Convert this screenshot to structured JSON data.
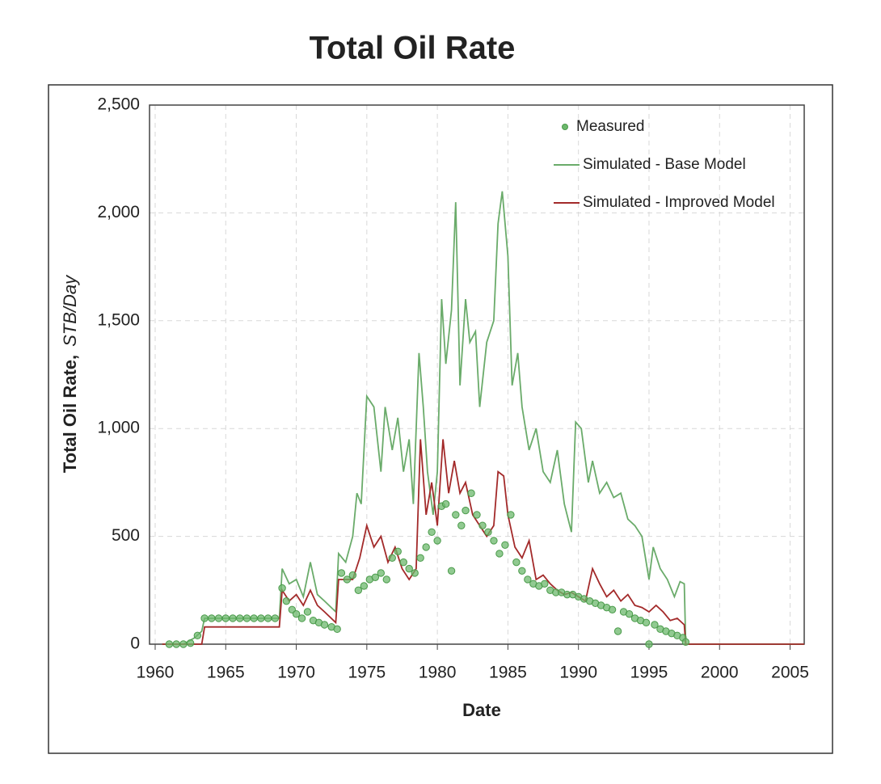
{
  "chart_data": {
    "type": "line",
    "title": "Total Oil Rate",
    "x_label": "Date",
    "y_label": "Total Oil Rate,",
    "y_unit": "STB/Day",
    "xlim": [
      1959.6,
      2006
    ],
    "ylim": [
      0,
      2500
    ],
    "xticks": [
      1960,
      1965,
      1970,
      1975,
      1980,
      1985,
      1990,
      1995,
      2000,
      2005
    ],
    "yticks": [
      0,
      500,
      {
        "value": 1000,
        "label": "1,000"
      },
      {
        "value": 1500,
        "label": "1,500"
      },
      {
        "value": 2000,
        "label": "2,000"
      },
      {
        "value": 2500,
        "label": "2,500"
      }
    ],
    "grid": true,
    "legend": "upper right",
    "series": [
      {
        "name": "Measured",
        "type": "scatter",
        "color": "#6cb86c",
        "x": [
          1961,
          1961.5,
          1962,
          1962.5,
          1963,
          1963.5,
          1964,
          1964.5,
          1965,
          1965.5,
          1966,
          1966.5,
          1967,
          1967.5,
          1968,
          1968.5,
          1969,
          1969.3,
          1969.7,
          1970,
          1970.4,
          1970.8,
          1971.2,
          1971.6,
          1972,
          1972.5,
          1972.9,
          1973.2,
          1973.6,
          1974,
          1974.4,
          1974.8,
          1975.2,
          1975.6,
          1976,
          1976.4,
          1976.8,
          1977.2,
          1977.6,
          1978,
          1978.4,
          1978.8,
          1979.2,
          1979.6,
          1980,
          1980.3,
          1980.6,
          1981,
          1981.3,
          1981.7,
          1982,
          1982.4,
          1982.8,
          1983.2,
          1983.6,
          1984,
          1984.4,
          1984.8,
          1985.2,
          1985.6,
          1986,
          1986.4,
          1986.8,
          1987.2,
          1987.6,
          1988,
          1988.4,
          1988.8,
          1989.2,
          1989.6,
          1990,
          1990.4,
          1990.8,
          1991.2,
          1991.6,
          1992,
          1992.4,
          1992.8,
          1993.2,
          1993.6,
          1994,
          1994.4,
          1994.8,
          1995,
          1995.4,
          1995.8,
          1996.2,
          1996.6,
          1997,
          1997.4,
          1997.6
        ],
        "values": [
          0,
          0,
          0,
          5,
          40,
          120,
          120,
          120,
          120,
          120,
          120,
          120,
          120,
          120,
          120,
          120,
          260,
          200,
          160,
          140,
          120,
          150,
          110,
          100,
          90,
          80,
          70,
          330,
          300,
          320,
          250,
          270,
          300,
          310,
          330,
          300,
          400,
          430,
          380,
          350,
          330,
          400,
          450,
          520,
          480,
          640,
          650,
          340,
          600,
          550,
          620,
          700,
          600,
          550,
          520,
          480,
          420,
          460,
          600,
          380,
          340,
          300,
          280,
          270,
          280,
          250,
          240,
          240,
          230,
          230,
          220,
          210,
          200,
          190,
          180,
          170,
          160,
          60,
          150,
          140,
          120,
          110,
          100,
          0,
          90,
          70,
          60,
          50,
          40,
          30,
          10
        ]
      },
      {
        "name": "Simulated - Base Model",
        "type": "line",
        "color": "#6aab6a",
        "x": [
          1960.5,
          1962,
          1962.8,
          1963.3,
          1963.5,
          1968.8,
          1969,
          1969.5,
          1970,
          1970.5,
          1971,
          1971.5,
          1972,
          1972.8,
          1973,
          1973.5,
          1974,
          1974.3,
          1974.6,
          1975,
          1975.5,
          1976,
          1976.3,
          1976.8,
          1977.2,
          1977.6,
          1978,
          1978.3,
          1978.7,
          1979,
          1979.3,
          1979.7,
          1980,
          1980.3,
          1980.6,
          1981,
          1981.3,
          1981.6,
          1982,
          1982.3,
          1982.7,
          1983,
          1983.5,
          1984,
          1984.3,
          1984.6,
          1985,
          1985.3,
          1985.7,
          1986,
          1986.5,
          1987,
          1987.5,
          1988,
          1988.5,
          1989,
          1989.5,
          1989.8,
          1990.2,
          1990.7,
          1991,
          1991.5,
          1992,
          1992.5,
          1993,
          1993.5,
          1994,
          1994.5,
          1995,
          1995.3,
          1995.8,
          1996.3,
          1996.8,
          1997.2,
          1997.5,
          1997.6,
          2006
        ],
        "values": [
          0,
          0,
          30,
          60,
          120,
          120,
          350,
          280,
          300,
          220,
          380,
          230,
          200,
          150,
          420,
          380,
          500,
          700,
          650,
          1150,
          1100,
          800,
          1100,
          900,
          1050,
          800,
          950,
          650,
          1350,
          1100,
          800,
          600,
          800,
          1600,
          1300,
          1550,
          2050,
          1200,
          1600,
          1400,
          1450,
          1100,
          1400,
          1500,
          1950,
          2100,
          1800,
          1200,
          1350,
          1100,
          900,
          1000,
          800,
          750,
          900,
          650,
          520,
          1030,
          1000,
          750,
          850,
          700,
          750,
          680,
          700,
          580,
          550,
          500,
          300,
          450,
          350,
          300,
          220,
          290,
          280,
          0,
          0
        ]
      },
      {
        "name": "Simulated - Improved Model",
        "type": "line",
        "color": "#a32a2a",
        "x": [
          1960.5,
          1963.3,
          1963.5,
          1968.8,
          1969,
          1969.5,
          1970,
          1970.5,
          1971,
          1971.5,
          1972,
          1972.8,
          1973,
          1974,
          1974.5,
          1975,
          1975.5,
          1976,
          1976.5,
          1977,
          1977.5,
          1978,
          1978.5,
          1978.8,
          1979.2,
          1979.6,
          1980,
          1980.4,
          1980.8,
          1981.2,
          1981.6,
          1982,
          1982.5,
          1983,
          1983.5,
          1984,
          1984.3,
          1984.7,
          1985,
          1985.5,
          1986,
          1986.5,
          1987,
          1987.5,
          1988,
          1988.5,
          1989,
          1989.5,
          1990,
          1990.5,
          1991,
          1991.5,
          1992,
          1992.5,
          1993,
          1993.5,
          1994,
          1994.5,
          1995,
          1995.5,
          1996,
          1996.5,
          1997,
          1997.5,
          1997.6,
          2006
        ],
        "values": [
          0,
          0,
          80,
          80,
          250,
          200,
          230,
          180,
          250,
          180,
          150,
          100,
          300,
          300,
          400,
          550,
          450,
          500,
          380,
          450,
          350,
          300,
          350,
          950,
          600,
          750,
          550,
          950,
          700,
          850,
          700,
          750,
          600,
          550,
          500,
          550,
          800,
          780,
          600,
          450,
          400,
          480,
          300,
          320,
          280,
          250,
          230,
          240,
          220,
          200,
          350,
          280,
          220,
          250,
          200,
          230,
          180,
          170,
          150,
          180,
          150,
          110,
          120,
          90,
          0,
          0
        ]
      }
    ]
  }
}
